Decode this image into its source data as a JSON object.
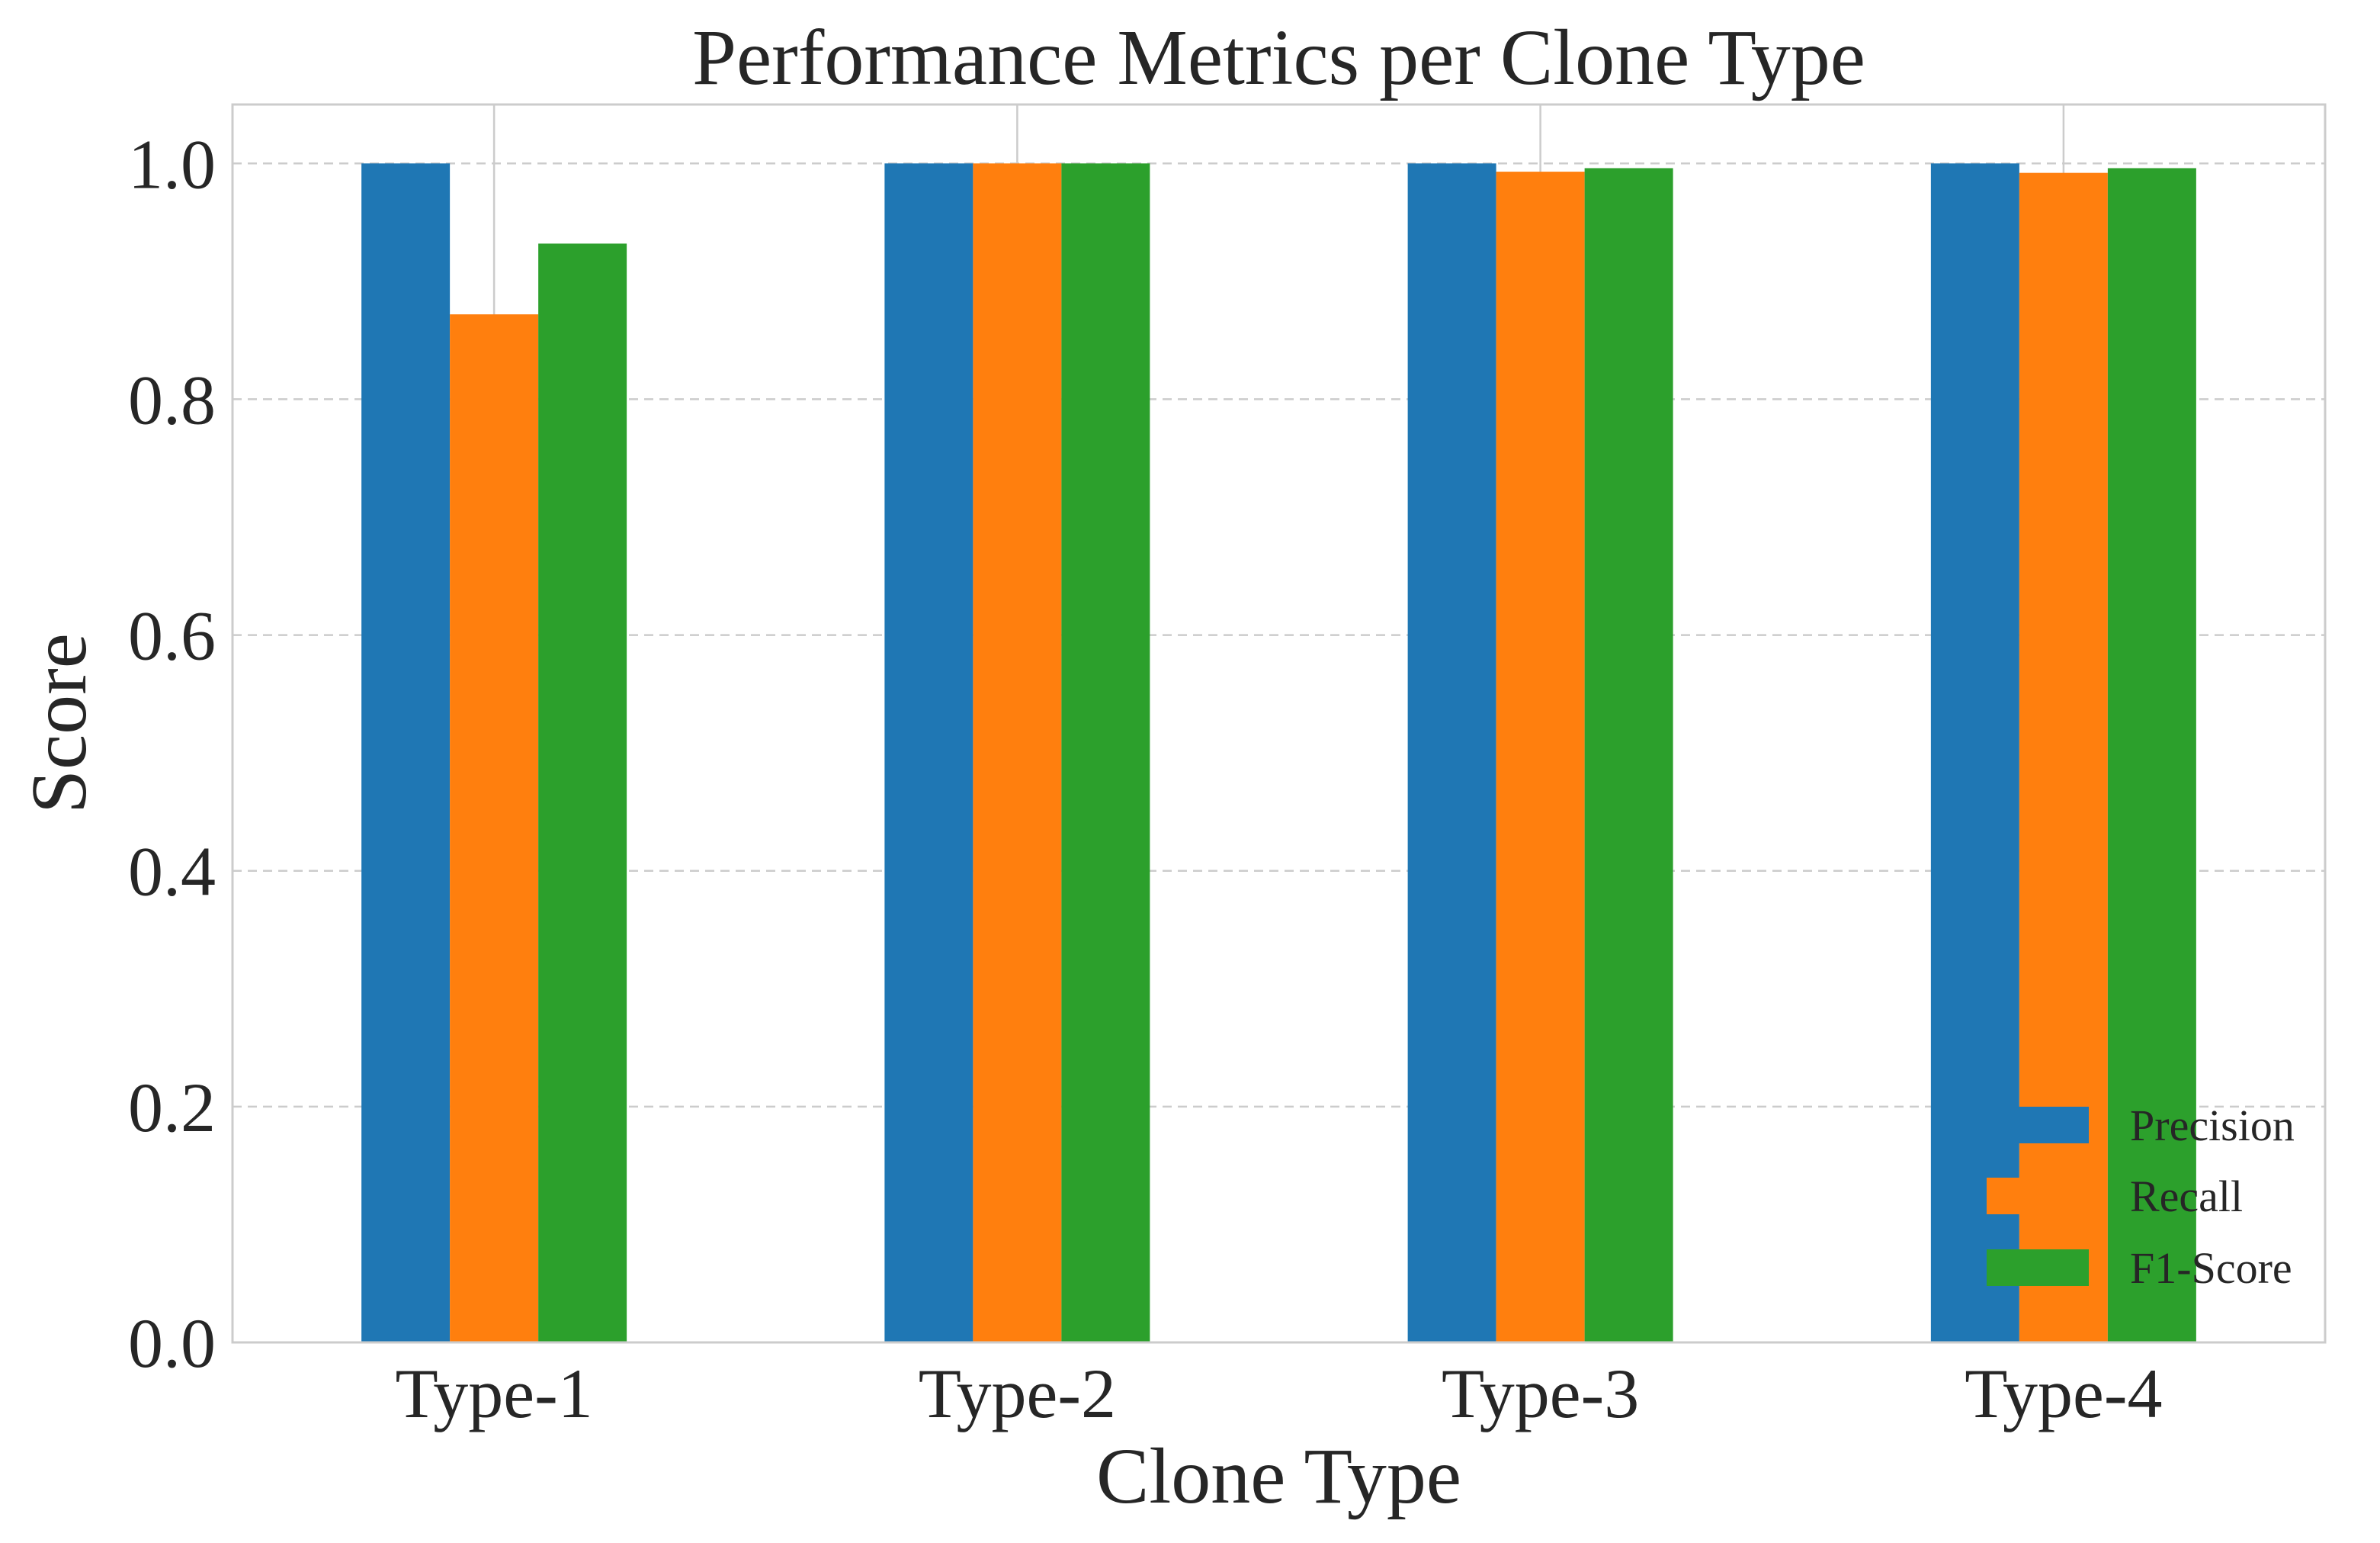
{
  "chart_data": {
    "type": "bar",
    "title": "Performance Metrics per Clone Type",
    "xlabel": "Clone Type",
    "ylabel": "Score",
    "categories": [
      "Type-1",
      "Type-2",
      "Type-3",
      "Type-4"
    ],
    "series": [
      {
        "name": "Precision",
        "color": "#1f77b4",
        "values": [
          1.0,
          1.0,
          1.0,
          1.0
        ]
      },
      {
        "name": "Recall",
        "color": "#ff7f0e",
        "values": [
          0.872,
          1.0,
          0.993,
          0.992
        ]
      },
      {
        "name": "F1-Score",
        "color": "#2ca02c",
        "values": [
          0.932,
          1.0,
          0.996,
          0.996
        ]
      }
    ],
    "ylim": [
      0,
      1.05
    ],
    "yticks": [
      "0.0",
      "0.2",
      "0.4",
      "0.6",
      "0.8",
      "1.0"
    ],
    "grid": {
      "y": true,
      "y_style": "dashed",
      "x": true
    },
    "legend": {
      "placement": "lower-right"
    }
  }
}
